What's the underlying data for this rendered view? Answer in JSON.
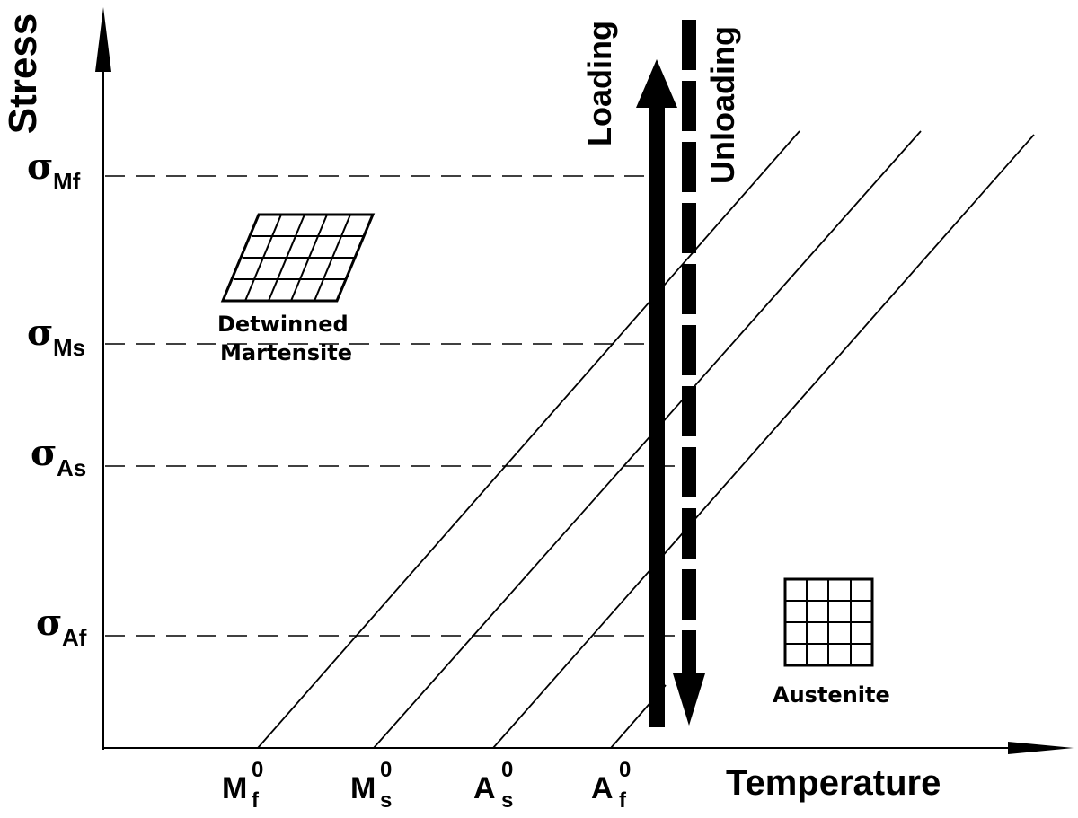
{
  "axes": {
    "y_label": "Stress",
    "x_label": "Temperature"
  },
  "stress_levels": [
    {
      "symbol": "σ",
      "subscript": "Mf"
    },
    {
      "symbol": "σ",
      "subscript": "Ms"
    },
    {
      "symbol": "σ",
      "subscript": "As"
    },
    {
      "symbol": "σ",
      "subscript": "Af"
    }
  ],
  "temperatures": [
    {
      "base": "M",
      "superscript": "0",
      "subscript": "f"
    },
    {
      "base": "M",
      "superscript": "0",
      "subscript": "s"
    },
    {
      "base": "A",
      "superscript": "0",
      "subscript": "s"
    },
    {
      "base": "A",
      "superscript": "0",
      "subscript": "f"
    }
  ],
  "arrows": {
    "loading": "Loading",
    "unloading": "Unloading"
  },
  "phases": {
    "martensite_line1": "Detwinned",
    "martensite_line2": "Martensite",
    "austenite": "Austenite"
  }
}
